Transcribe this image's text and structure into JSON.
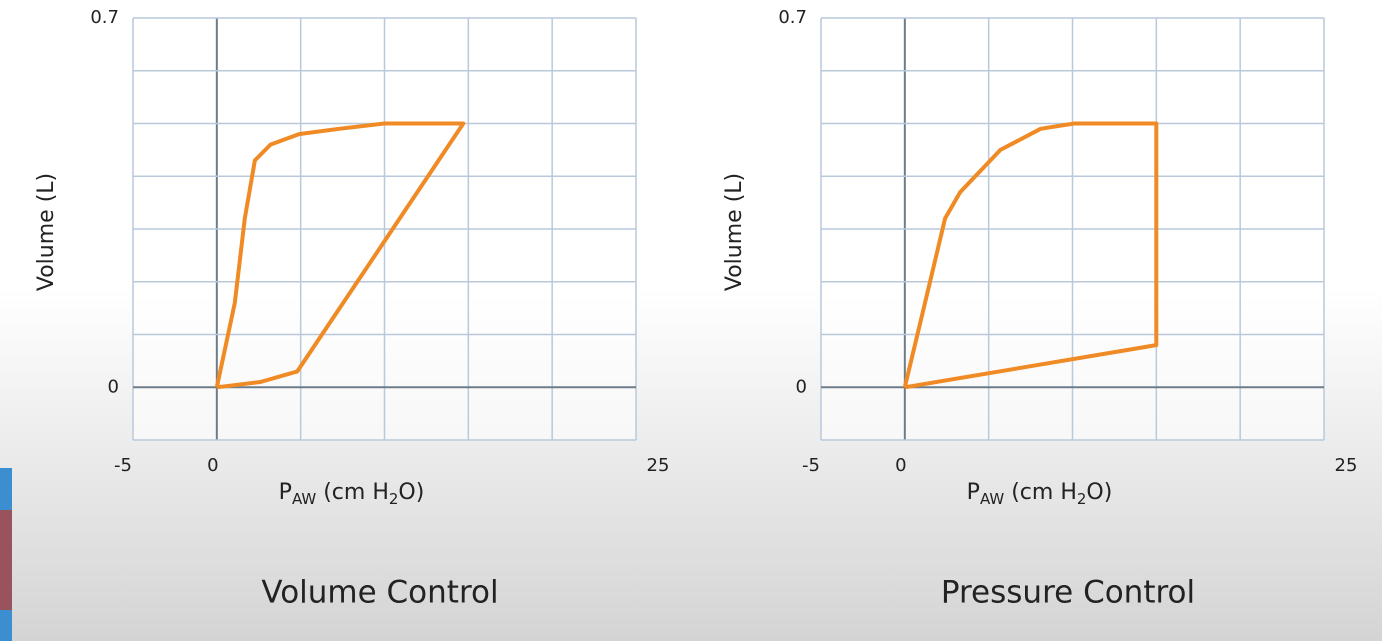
{
  "chart_data": [
    {
      "type": "line",
      "title": "Volume Control",
      "ylabel": "Volume (L)",
      "xlabel": [
        "P",
        "AW",
        " (cm H",
        "2",
        "O)"
      ],
      "xlim": [
        -5,
        25
      ],
      "ylim": [
        -0.1,
        0.7
      ],
      "xticks": [
        -5,
        0,
        25
      ],
      "yticks": [
        0,
        0.7
      ],
      "xgrid": [
        -5,
        0,
        5,
        10,
        15,
        20,
        25
      ],
      "ygrid": [
        -0.1,
        0,
        0.1,
        0.2,
        0.3,
        0.4,
        0.5,
        0.6,
        0.7
      ],
      "x": [
        0,
        1.07,
        1.67,
        2.27,
        3.2,
        4.9,
        7.3,
        10,
        14.7,
        4.8,
        2.6,
        0
      ],
      "series": [
        {
          "color": "#f08a24",
          "values": [
            0,
            0.16,
            0.32,
            0.43,
            0.46,
            0.48,
            0.49,
            0.5,
            0.5,
            0.03,
            0.01,
            0
          ]
        }
      ]
    },
    {
      "type": "line",
      "title": "Pressure Control",
      "ylabel": "Volume (L)",
      "xlabel": [
        "P",
        "AW",
        " (cm H",
        "2",
        "O)"
      ],
      "xlim": [
        -5,
        25
      ],
      "ylim": [
        -0.1,
        0.7
      ],
      "xticks": [
        -5,
        0,
        25
      ],
      "yticks": [
        0,
        0.7
      ],
      "xgrid": [
        -5,
        0,
        5,
        10,
        15,
        20,
        25
      ],
      "ygrid": [
        -0.1,
        0,
        0.1,
        0.2,
        0.3,
        0.4,
        0.5,
        0.6,
        0.7
      ],
      "x": [
        0,
        1.2,
        2.4,
        3.3,
        5.7,
        8.1,
        10.1,
        15,
        15,
        0
      ],
      "series": [
        {
          "color": "#f08a24",
          "values": [
            0,
            0.16,
            0.32,
            0.37,
            0.45,
            0.49,
            0.5,
            0.5,
            0.08,
            0
          ]
        }
      ]
    }
  ]
}
